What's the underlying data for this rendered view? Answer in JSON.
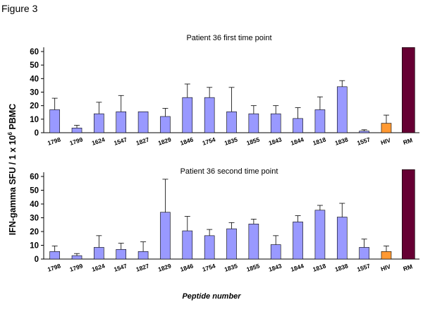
{
  "figure_label": "Figure 3",
  "y_axis_label": "IFN-gamma SFU / 1 x 10",
  "y_axis_label_sup": "6",
  "y_axis_label_tail": " PBMC",
  "x_axis_label": "Peptide number",
  "colors": {
    "peptide": "#9999ff",
    "hiv": "#ff9933",
    "rm": "#660033",
    "border": "#000000"
  },
  "chart_data": [
    {
      "type": "bar",
      "title": "Patient 36 first time point",
      "categories": [
        "1798",
        "1799",
        "1624",
        "1547",
        "1827",
        "1829",
        "1846",
        "1754",
        "1835",
        "1855",
        "1843",
        "1844",
        "1818",
        "1838",
        "1557",
        "HIV",
        "RM"
      ],
      "values": [
        17,
        3.5,
        14,
        15.5,
        15.5,
        12,
        26,
        26,
        15.5,
        14,
        14,
        10.5,
        17,
        34,
        1.2,
        7,
        63
      ],
      "error_upper": [
        25.5,
        5.5,
        22.5,
        27.5,
        15.5,
        18,
        36,
        33.5,
        33.5,
        20,
        20,
        18.5,
        26.5,
        38.5,
        2.2,
        13,
        63
      ],
      "ylim": [
        0,
        65
      ],
      "yticks": [
        0,
        10,
        20,
        30,
        40,
        50,
        60
      ]
    },
    {
      "type": "bar",
      "title": "Patient 36 second time point",
      "categories": [
        "1798",
        "1799",
        "1624",
        "1547",
        "1827",
        "1829",
        "1846",
        "1754",
        "1835",
        "1855",
        "1843",
        "1844",
        "1818",
        "1838",
        "1557",
        "HIV",
        "RM"
      ],
      "values": [
        5.5,
        2.5,
        8.5,
        7,
        5.5,
        34,
        20.5,
        17,
        22,
        25.5,
        10.5,
        27,
        35.5,
        30.5,
        8.5,
        5.5,
        65
      ],
      "error_upper": [
        9.5,
        4,
        17,
        11.5,
        12.5,
        58,
        31,
        21.5,
        26.5,
        29,
        17,
        31.5,
        39,
        40.5,
        14.5,
        9.5,
        65
      ],
      "ylim": [
        0,
        65
      ],
      "yticks": [
        0,
        10,
        20,
        30,
        40,
        50,
        60
      ]
    }
  ]
}
